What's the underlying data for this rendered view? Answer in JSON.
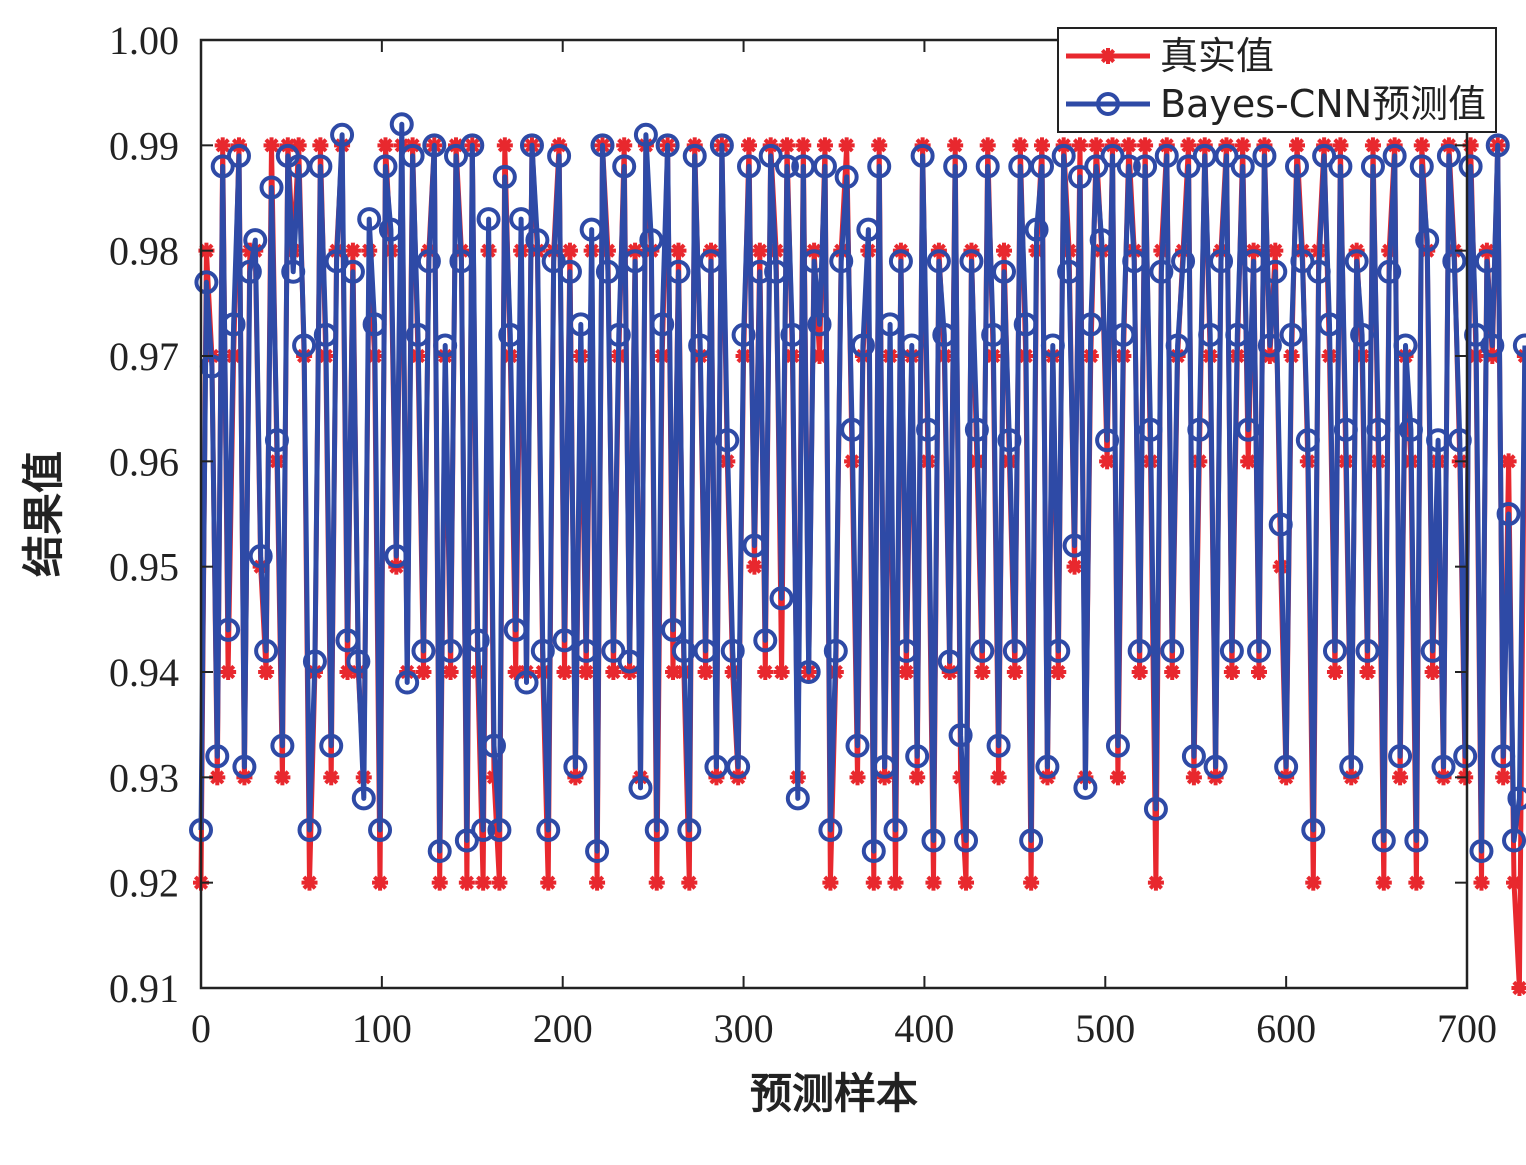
{
  "chart_data": {
    "type": "line",
    "xlabel": "预测样本",
    "ylabel": "结果值",
    "xlim": [
      0,
      700
    ],
    "ylim": [
      0.91,
      1.0
    ],
    "xticks": [
      0,
      100,
      200,
      300,
      400,
      500,
      600,
      700
    ],
    "yticks": [
      0.91,
      0.92,
      0.93,
      0.94,
      0.95,
      0.96,
      0.97,
      0.98,
      0.99,
      1.0
    ],
    "ytick_labels": [
      "0.91",
      "0.92",
      "0.93",
      "0.94",
      "0.95",
      "0.96",
      "0.97",
      "0.98",
      "0.99",
      "1.00"
    ],
    "grid": false,
    "legend_position": "top-right",
    "series": [
      {
        "name": "真实值",
        "color": "#e8282e",
        "marker": "asterisk",
        "x_start": 0,
        "x_step": 3,
        "values": [
          0.92,
          0.98,
          0.97,
          0.93,
          0.99,
          0.94,
          0.97,
          0.99,
          0.93,
          0.98,
          0.98,
          0.95,
          0.94,
          0.99,
          0.96,
          0.93,
          0.99,
          0.98,
          0.99,
          0.97,
          0.92,
          0.94,
          0.99,
          0.97,
          0.93,
          0.98,
          0.99,
          0.94,
          0.98,
          0.94,
          0.93,
          0.98,
          0.97,
          0.92,
          0.99,
          0.98,
          0.95,
          0.99,
          0.94,
          0.99,
          0.97,
          0.94,
          0.98,
          0.99,
          0.92,
          0.97,
          0.94,
          0.99,
          0.98,
          0.92,
          0.99,
          0.94,
          0.92,
          0.98,
          0.93,
          0.92,
          0.99,
          0.97,
          0.94,
          0.98,
          0.94,
          0.99,
          0.98,
          0.94,
          0.92,
          0.98,
          0.99,
          0.94,
          0.98,
          0.93,
          0.97,
          0.94,
          0.98,
          0.92,
          0.99,
          0.98,
          0.94,
          0.97,
          0.99,
          0.94,
          0.98,
          0.93,
          0.99,
          0.98,
          0.92,
          0.97,
          0.99,
          0.94,
          0.98,
          0.94,
          0.92,
          0.99,
          0.97,
          0.94,
          0.98,
          0.93,
          0.99,
          0.96,
          0.94,
          0.93,
          0.97,
          0.99,
          0.95,
          0.98,
          0.94,
          0.99,
          0.98,
          0.94,
          0.99,
          0.97,
          0.93,
          0.99,
          0.94,
          0.98,
          0.97,
          0.99,
          0.92,
          0.94,
          0.98,
          0.99,
          0.96,
          0.93,
          0.97,
          0.98,
          0.92,
          0.99,
          0.93,
          0.97,
          0.92,
          0.98,
          0.94,
          0.97,
          0.93,
          0.99,
          0.96,
          0.92,
          0.98,
          0.97,
          0.94,
          0.99,
          0.93,
          0.92,
          0.98,
          0.96,
          0.94,
          0.99,
          0.97,
          0.93,
          0.98,
          0.96,
          0.94,
          0.99,
          0.97,
          0.92,
          0.98,
          0.99,
          0.93,
          0.97,
          0.94,
          0.99,
          0.98,
          0.95,
          0.99,
          0.93,
          0.97,
          0.99,
          0.98,
          0.96,
          0.99,
          0.93,
          0.97,
          0.99,
          0.98,
          0.94,
          0.99,
          0.96,
          0.92,
          0.98,
          0.99,
          0.94,
          0.97,
          0.98,
          0.99,
          0.93,
          0.96,
          0.99,
          0.97,
          0.93,
          0.98,
          0.99,
          0.94,
          0.97,
          0.99,
          0.96,
          0.98,
          0.94,
          0.99,
          0.97,
          0.98,
          0.95,
          0.93,
          0.97,
          0.99,
          0.98,
          0.96,
          0.92,
          0.98,
          0.99,
          0.97,
          0.94,
          0.99,
          0.96,
          0.93,
          0.98,
          0.97,
          0.94,
          0.99,
          0.96,
          0.92,
          0.98,
          0.99,
          0.93,
          0.97,
          0.96,
          0.92,
          0.99,
          0.98,
          0.94,
          0.96,
          0.93,
          0.99,
          0.98,
          0.96,
          0.93,
          0.99,
          0.97,
          0.92,
          0.98,
          0.97,
          0.99,
          0.93,
          0.96,
          0.92,
          0.91,
          0.97
        ]
      },
      {
        "name": "Bayes-CNN预测值",
        "color": "#2e4aa6",
        "marker": "circle",
        "x_start": 0,
        "x_step": 3,
        "values": [
          0.925,
          0.977,
          0.969,
          0.932,
          0.988,
          0.944,
          0.973,
          0.989,
          0.931,
          0.978,
          0.981,
          0.951,
          0.942,
          0.986,
          0.962,
          0.933,
          0.989,
          0.978,
          0.988,
          0.971,
          0.925,
          0.941,
          0.988,
          0.972,
          0.933,
          0.979,
          0.991,
          0.943,
          0.978,
          0.941,
          0.928,
          0.983,
          0.973,
          0.925,
          0.988,
          0.982,
          0.951,
          0.992,
          0.939,
          0.989,
          0.972,
          0.942,
          0.979,
          0.99,
          0.923,
          0.971,
          0.942,
          0.989,
          0.979,
          0.924,
          0.99,
          0.943,
          0.925,
          0.983,
          0.933,
          0.925,
          0.987,
          0.972,
          0.944,
          0.983,
          0.939,
          0.99,
          0.981,
          0.942,
          0.925,
          0.979,
          0.989,
          0.943,
          0.978,
          0.931,
          0.973,
          0.942,
          0.982,
          0.923,
          0.99,
          0.978,
          0.942,
          0.972,
          0.988,
          0.941,
          0.979,
          0.929,
          0.991,
          0.981,
          0.925,
          0.973,
          0.99,
          0.944,
          0.978,
          0.942,
          0.925,
          0.989,
          0.971,
          0.942,
          0.979,
          0.931,
          0.99,
          0.962,
          0.942,
          0.931,
          0.972,
          0.988,
          0.952,
          0.978,
          0.943,
          0.989,
          0.978,
          0.947,
          0.988,
          0.972,
          0.928,
          0.988,
          0.94,
          0.979,
          0.973,
          0.988,
          0.925,
          0.942,
          0.979,
          0.987,
          0.963,
          0.933,
          0.971,
          0.982,
          0.923,
          0.988,
          0.931,
          0.973,
          0.925,
          0.979,
          0.942,
          0.971,
          0.932,
          0.989,
          0.963,
          0.924,
          0.979,
          0.972,
          0.941,
          0.988,
          0.934,
          0.924,
          0.979,
          0.963,
          0.942,
          0.988,
          0.972,
          0.933,
          0.978,
          0.962,
          0.942,
          0.988,
          0.973,
          0.924,
          0.982,
          0.988,
          0.931,
          0.971,
          0.942,
          0.989,
          0.978,
          0.952,
          0.987,
          0.929,
          0.973,
          0.988,
          0.981,
          0.962,
          0.989,
          0.933,
          0.972,
          0.988,
          0.979,
          0.942,
          0.988,
          0.963,
          0.927,
          0.978,
          0.989,
          0.942,
          0.971,
          0.979,
          0.988,
          0.932,
          0.963,
          0.989,
          0.972,
          0.931,
          0.979,
          0.989,
          0.942,
          0.972,
          0.988,
          0.963,
          0.979,
          0.942,
          0.989,
          0.971,
          0.978,
          0.954,
          0.931,
          0.972,
          0.988,
          0.979,
          0.962,
          0.925,
          0.978,
          0.989,
          0.973,
          0.942,
          0.988,
          0.963,
          0.931,
          0.979,
          0.972,
          0.942,
          0.988,
          0.963,
          0.924,
          0.978,
          0.989,
          0.932,
          0.971,
          0.963,
          0.924,
          0.988,
          0.981,
          0.942,
          0.962,
          0.931,
          0.989,
          0.979,
          0.962,
          0.932,
          0.988,
          0.972,
          0.923,
          0.979,
          0.971,
          0.99,
          0.932,
          0.955,
          0.924,
          0.928,
          0.971
        ]
      }
    ]
  }
}
